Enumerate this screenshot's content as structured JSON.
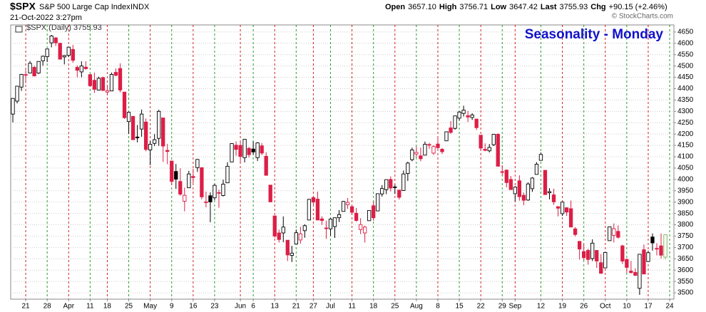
{
  "header": {
    "symbol": "$SPX",
    "name": "S&P 500 Large Cap Index",
    "exchange": "INDX",
    "datetime": "21-Oct-2022 3:27pm",
    "open_label": "Open",
    "open": "3657.10",
    "high_label": "High",
    "high": "3756.71",
    "low_label": "Low",
    "low": "3647.42",
    "last_label": "Last",
    "last": "3755.93",
    "chg_label": "Chg",
    "chg": "+90.15 (+2.46%)",
    "copyright": "© StockCharts.com"
  },
  "chart_data": {
    "type": "candlestick",
    "legend": "$SPX (Daily) 3755.93",
    "annotation": "Seasonality - Monday",
    "up_color": "#000000",
    "down_color": "#dc1e46",
    "last_color": "#78b050",
    "grid": true,
    "ylim": [
      3472,
      4681
    ],
    "yticks": [
      3500,
      3550,
      3600,
      3650,
      3700,
      3750,
      3800,
      3850,
      3900,
      3950,
      4000,
      4050,
      4100,
      4150,
      4200,
      4250,
      4300,
      4350,
      4400,
      4450,
      4500,
      4550,
      4600,
      4650
    ],
    "x_labels": [
      {
        "index": 3,
        "label": "21"
      },
      {
        "index": 8,
        "label": "28"
      },
      {
        "index": 13,
        "label": "Apr"
      },
      {
        "index": 18,
        "label": "11"
      },
      {
        "index": 22,
        "label": "18"
      },
      {
        "index": 27,
        "label": "25"
      },
      {
        "index": 32,
        "label": "May"
      },
      {
        "index": 37,
        "label": "9"
      },
      {
        "index": 42,
        "label": "16"
      },
      {
        "index": 47,
        "label": "23"
      },
      {
        "index": 53,
        "label": "Jun"
      },
      {
        "index": 56,
        "label": "6"
      },
      {
        "index": 61,
        "label": "13"
      },
      {
        "index": 66,
        "label": "21"
      },
      {
        "index": 70,
        "label": "27"
      },
      {
        "index": 74,
        "label": "Jul"
      },
      {
        "index": 79,
        "label": "11"
      },
      {
        "index": 84,
        "label": "18"
      },
      {
        "index": 89,
        "label": "25"
      },
      {
        "index": 94,
        "label": "Aug"
      },
      {
        "index": 99,
        "label": "8"
      },
      {
        "index": 104,
        "label": "15"
      },
      {
        "index": 109,
        "label": "22"
      },
      {
        "index": 114,
        "label": "29"
      },
      {
        "index": 117,
        "label": "Sep"
      },
      {
        "index": 123,
        "label": "12"
      },
      {
        "index": 128,
        "label": "19"
      },
      {
        "index": 133,
        "label": "26"
      },
      {
        "index": 138,
        "label": "Oct"
      },
      {
        "index": 143,
        "label": "10"
      },
      {
        "index": 148,
        "label": "17"
      },
      {
        "index": 153,
        "label": "24"
      }
    ],
    "candles": [
      [
        4288,
        4358,
        4251,
        4357
      ],
      [
        4345,
        4412,
        4335,
        4411
      ],
      [
        4407,
        4465,
        4390,
        4463
      ],
      [
        4462,
        4482,
        4424,
        4461
      ],
      [
        4469,
        4522,
        4469,
        4512
      ],
      [
        4494,
        4501,
        4455,
        4456
      ],
      [
        4469,
        4520,
        4465,
        4520
      ],
      [
        4523,
        4546,
        4501,
        4543
      ],
      [
        4541,
        4575,
        4517,
        4575
      ],
      [
        4602,
        4637,
        4582,
        4632
      ],
      [
        4624,
        4627,
        4588,
        4602
      ],
      [
        4600,
        4603,
        4530,
        4530
      ],
      [
        4540,
        4548,
        4507,
        4546
      ],
      [
        4547,
        4583,
        4539,
        4583
      ],
      [
        4573,
        4593,
        4514,
        4525
      ],
      [
        4494,
        4503,
        4450,
        4481
      ],
      [
        4474,
        4521,
        4450,
        4500
      ],
      [
        4495,
        4521,
        4484,
        4488
      ],
      [
        4462,
        4464,
        4408,
        4413
      ],
      [
        4437,
        4471,
        4381,
        4397
      ],
      [
        4394,
        4453,
        4392,
        4446
      ],
      [
        4449,
        4453,
        4392,
        4392
      ],
      [
        4385,
        4410,
        4371,
        4391
      ],
      [
        4390,
        4471,
        4390,
        4463
      ],
      [
        4472,
        4489,
        4455,
        4459
      ],
      [
        4489,
        4512,
        4384,
        4394
      ],
      [
        4385,
        4386,
        4267,
        4272
      ],
      [
        4255,
        4299,
        4200,
        4296
      ],
      [
        4278,
        4278,
        4175,
        4175
      ],
      [
        4187,
        4240,
        4163,
        4183
      ],
      [
        4222,
        4308,
        4188,
        4288
      ],
      [
        4253,
        4269,
        4124,
        4132
      ],
      [
        4130,
        4169,
        4063,
        4155
      ],
      [
        4159,
        4200,
        4147,
        4175
      ],
      [
        4181,
        4307,
        4148,
        4300
      ],
      [
        4271,
        4271,
        4077,
        4147
      ],
      [
        4128,
        4157,
        4067,
        4123
      ],
      [
        4081,
        4082,
        3975,
        3991
      ],
      [
        4035,
        4068,
        3958,
        4001
      ],
      [
        3991,
        4049,
        3928,
        3935
      ],
      [
        3904,
        3964,
        3859,
        3930
      ],
      [
        3963,
        4038,
        3963,
        4024
      ],
      [
        4013,
        4047,
        3984,
        4008
      ],
      [
        4052,
        4090,
        4033,
        4088
      ],
      [
        4052,
        4052,
        3912,
        3923
      ],
      [
        3900,
        3946,
        3877,
        3901
      ],
      [
        3928,
        3943,
        3811,
        3901
      ],
      [
        3919,
        3981,
        3909,
        3974
      ],
      [
        3942,
        3955,
        3875,
        3941
      ],
      [
        3929,
        3999,
        3925,
        3979
      ],
      [
        3985,
        4076,
        3985,
        4058
      ],
      [
        4077,
        4158,
        4077,
        4158
      ],
      [
        4151,
        4168,
        4104,
        4132
      ],
      [
        4150,
        4166,
        4073,
        4101
      ],
      [
        4096,
        4177,
        4075,
        4177
      ],
      [
        4137,
        4143,
        4097,
        4109
      ],
      [
        4134,
        4168,
        4109,
        4121
      ],
      [
        4096,
        4164,
        4081,
        4161
      ],
      [
        4148,
        4160,
        4107,
        4116
      ],
      [
        4102,
        4120,
        4017,
        4018
      ],
      [
        3975,
        3975,
        3900,
        3901
      ],
      [
        3839,
        3839,
        3743,
        3750
      ],
      [
        3764,
        3779,
        3722,
        3735
      ],
      [
        3764,
        3837,
        3723,
        3790
      ],
      [
        3732,
        3732,
        3640,
        3667
      ],
      [
        3665,
        3707,
        3636,
        3675
      ],
      [
        3715,
        3779,
        3715,
        3765
      ],
      [
        3733,
        3791,
        3717,
        3760
      ],
      [
        3774,
        3802,
        3743,
        3796
      ],
      [
        3821,
        3914,
        3821,
        3912
      ],
      [
        3920,
        3928,
        3889,
        3900
      ],
      [
        3913,
        3946,
        3820,
        3821
      ],
      [
        3826,
        3837,
        3800,
        3819
      ],
      [
        3786,
        3818,
        3738,
        3785
      ],
      [
        3782,
        3829,
        3752,
        3825
      ],
      [
        3792,
        3832,
        3742,
        3831
      ],
      [
        3831,
        3865,
        3812,
        3845
      ],
      [
        3859,
        3905,
        3859,
        3903
      ],
      [
        3888,
        3918,
        3870,
        3899
      ],
      [
        3880,
        3880,
        3847,
        3855
      ],
      [
        3851,
        3874,
        3814,
        3819
      ],
      [
        3779,
        3829,
        3759,
        3801
      ],
      [
        3764,
        3796,
        3722,
        3790
      ],
      [
        3818,
        3863,
        3817,
        3863
      ],
      [
        3884,
        3902,
        3818,
        3831
      ],
      [
        3861,
        3938,
        3861,
        3937
      ],
      [
        3936,
        3975,
        3924,
        3960
      ],
      [
        3955,
        3999,
        3935,
        3999
      ],
      [
        4000,
        4013,
        3947,
        3962
      ],
      [
        3966,
        3976,
        3936,
        3967
      ],
      [
        3953,
        3954,
        3911,
        3921
      ],
      [
        3951,
        4039,
        3951,
        4024
      ],
      [
        4026,
        4078,
        3993,
        4072
      ],
      [
        4087,
        4140,
        4080,
        4130
      ],
      [
        4112,
        4144,
        4097,
        4119
      ],
      [
        4104,
        4140,
        4080,
        4091
      ],
      [
        4107,
        4167,
        4107,
        4155
      ],
      [
        4154,
        4161,
        4135,
        4152
      ],
      [
        4116,
        4151,
        4108,
        4145
      ],
      [
        4156,
        4186,
        4128,
        4140
      ],
      [
        4133,
        4138,
        4112,
        4122
      ],
      [
        4170,
        4211,
        4170,
        4210
      ],
      [
        4227,
        4257,
        4201,
        4207
      ],
      [
        4225,
        4280,
        4219,
        4280
      ],
      [
        4270,
        4301,
        4260,
        4297
      ],
      [
        4291,
        4325,
        4277,
        4305
      ],
      [
        4281,
        4302,
        4253,
        4275
      ],
      [
        4273,
        4292,
        4262,
        4284
      ],
      [
        4266,
        4266,
        4218,
        4228
      ],
      [
        4195,
        4195,
        4129,
        4138
      ],
      [
        4133,
        4159,
        4124,
        4128
      ],
      [
        4126,
        4156,
        4119,
        4141
      ],
      [
        4153,
        4200,
        4147,
        4199
      ],
      [
        4199,
        4203,
        4057,
        4058
      ],
      [
        4034,
        4063,
        4017,
        4031
      ],
      [
        4041,
        4044,
        3965,
        3986
      ],
      [
        4000,
        4015,
        3954,
        3955
      ],
      [
        3937,
        3970,
        3903,
        3966
      ],
      [
        3994,
        4018,
        3906,
        3924
      ],
      [
        3930,
        3942,
        3886,
        3908
      ],
      [
        3909,
        3987,
        3906,
        3980
      ],
      [
        3959,
        4010,
        3945,
        4006
      ],
      [
        4022,
        4076,
        4022,
        4067
      ],
      [
        4084,
        4119,
        4083,
        4110
      ],
      [
        4040,
        4040,
        3933,
        3933
      ],
      [
        3941,
        3961,
        3912,
        3946
      ],
      [
        3932,
        3959,
        3888,
        3901
      ],
      [
        3880,
        3880,
        3837,
        3873
      ],
      [
        3849,
        3900,
        3839,
        3900
      ],
      [
        3875,
        3877,
        3839,
        3856
      ],
      [
        3871,
        3907,
        3789,
        3790
      ],
      [
        3782,
        3790,
        3749,
        3757
      ],
      [
        3727,
        3727,
        3647,
        3693
      ],
      [
        3682,
        3716,
        3644,
        3655
      ],
      [
        3687,
        3694,
        3624,
        3647
      ],
      [
        3651,
        3736,
        3640,
        3719
      ],
      [
        3687,
        3687,
        3610,
        3640
      ],
      [
        3633,
        3671,
        3584,
        3586
      ],
      [
        3610,
        3680,
        3610,
        3678
      ],
      [
        3730,
        3791,
        3730,
        3791
      ],
      [
        3753,
        3806,
        3722,
        3783
      ],
      [
        3771,
        3797,
        3739,
        3745
      ],
      [
        3707,
        3712,
        3627,
        3640
      ],
      [
        3647,
        3652,
        3588,
        3612
      ],
      [
        3596,
        3641,
        3585,
        3589
      ],
      [
        3590,
        3608,
        3574,
        3577
      ],
      [
        3520,
        3670,
        3491,
        3670
      ],
      [
        3690,
        3713,
        3583,
        3583
      ],
      [
        3638,
        3686,
        3638,
        3677
      ],
      [
        3746,
        3762,
        3686,
        3720
      ],
      [
        3696,
        3719,
        3665,
        3695
      ],
      [
        3707,
        3762,
        3652,
        3666
      ],
      [
        3657.1,
        3756.71,
        3647.42,
        3755.93
      ]
    ]
  }
}
